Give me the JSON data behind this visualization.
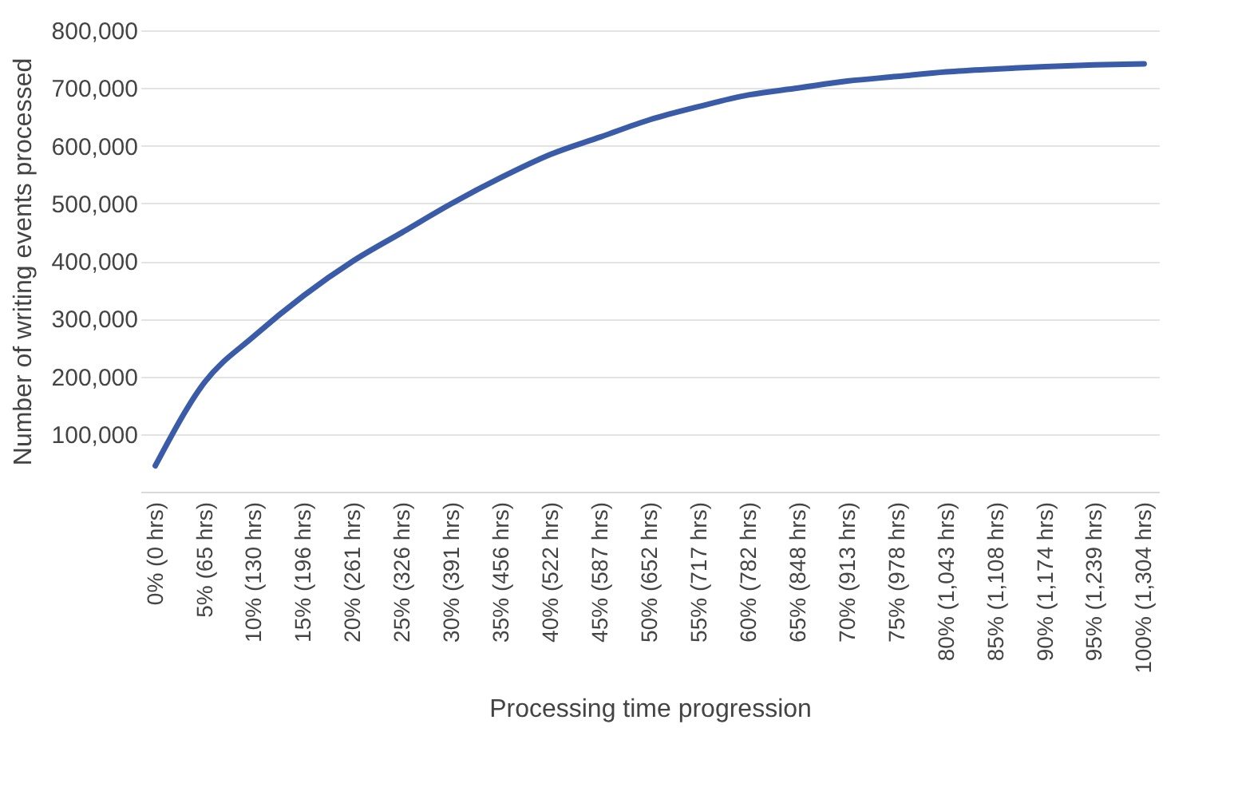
{
  "chart_data": {
    "type": "line",
    "xlabel": "Processing time progression",
    "ylabel": "Number of writing events processed",
    "categories": [
      "0% (0 hrs)",
      "5% (65 hrs)",
      "10% (130 hrs)",
      "15% (196 hrs)",
      "20% (261 hrs)",
      "25% (326 hrs)",
      "30% (391 hrs)",
      "35% (456 hrs)",
      "40% (522 hrs)",
      "45% (587 hrs)",
      "50% (652 hrs)",
      "55% (717 hrs)",
      "60% (782 hrs)",
      "65% (848 hrs)",
      "70% (913 hrs)",
      "75% (978 hrs)",
      "80% (1,043 hrs)",
      "85% (1,108 hrs)",
      "90% (1,174 hrs)",
      "95% (1,239 hrs)",
      "100% (1,304 hrs)"
    ],
    "series": [
      {
        "color": "#3a5ca8",
        "values": [
          45000,
          190000,
          270000,
          340000,
          400000,
          450000,
          500000,
          545000,
          585000,
          615000,
          645000,
          668000,
          688000,
          700000,
          712000,
          720000,
          728000,
          733000,
          737000,
          740000,
          742000
        ]
      }
    ],
    "ylim": [
      0,
      800000
    ],
    "yticks": [
      {
        "value": 100000,
        "label": "100,000"
      },
      {
        "value": 200000,
        "label": "200,000"
      },
      {
        "value": 300000,
        "label": "300,000"
      },
      {
        "value": 400000,
        "label": "400,000"
      },
      {
        "value": 500000,
        "label": "500,000"
      },
      {
        "value": 600000,
        "label": "600,000"
      },
      {
        "value": 700000,
        "label": "700,000"
      },
      {
        "value": 800000,
        "label": "800,000"
      }
    ],
    "grid": "y",
    "line_style": "solid"
  }
}
